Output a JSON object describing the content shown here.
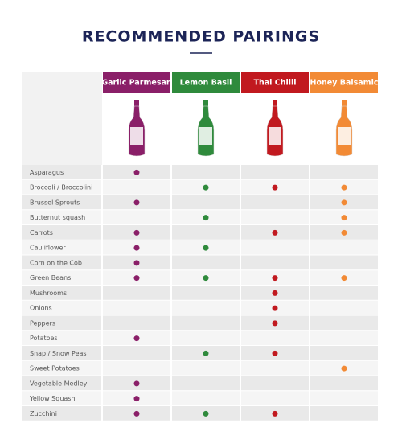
{
  "title": "RECOMMENDED PAIRINGS",
  "columns": [
    {
      "name": "Garlic Parmesan",
      "color": "#8a1f68"
    },
    {
      "name": "Lemon Basil",
      "color": "#2f8a3c"
    },
    {
      "name": "Thai Chilli",
      "color": "#c1191f"
    },
    {
      "name": "Honey Balsamic",
      "color": "#f28a35"
    }
  ],
  "rows": [
    {
      "name": "Asparagus",
      "pairs": [
        true,
        false,
        false,
        false
      ]
    },
    {
      "name": "Broccoli / Broccolini",
      "pairs": [
        false,
        true,
        true,
        true
      ]
    },
    {
      "name": "Brussel Sprouts",
      "pairs": [
        true,
        false,
        false,
        true
      ]
    },
    {
      "name": "Butternut squash",
      "pairs": [
        false,
        true,
        false,
        true
      ]
    },
    {
      "name": "Carrots",
      "pairs": [
        true,
        false,
        true,
        true
      ]
    },
    {
      "name": "Cauliflower",
      "pairs": [
        true,
        true,
        false,
        false
      ]
    },
    {
      "name": "Corn on the Cob",
      "pairs": [
        true,
        false,
        false,
        false
      ]
    },
    {
      "name": "Green Beans",
      "pairs": [
        true,
        true,
        true,
        true
      ]
    },
    {
      "name": "Mushrooms",
      "pairs": [
        false,
        false,
        true,
        false
      ]
    },
    {
      "name": "Onions",
      "pairs": [
        false,
        false,
        true,
        false
      ]
    },
    {
      "name": "Peppers",
      "pairs": [
        false,
        false,
        true,
        false
      ]
    },
    {
      "name": "Potatoes",
      "pairs": [
        true,
        false,
        false,
        false
      ]
    },
    {
      "name": "Snap / Snow Peas",
      "pairs": [
        false,
        true,
        true,
        false
      ]
    },
    {
      "name": "Sweet Potatoes",
      "pairs": [
        false,
        false,
        false,
        true
      ]
    },
    {
      "name": "Vegetable Medley",
      "pairs": [
        true,
        false,
        false,
        false
      ]
    },
    {
      "name": "Yellow Squash",
      "pairs": [
        true,
        false,
        false,
        false
      ]
    },
    {
      "name": "Zucchini",
      "pairs": [
        true,
        true,
        true,
        false
      ]
    }
  ]
}
